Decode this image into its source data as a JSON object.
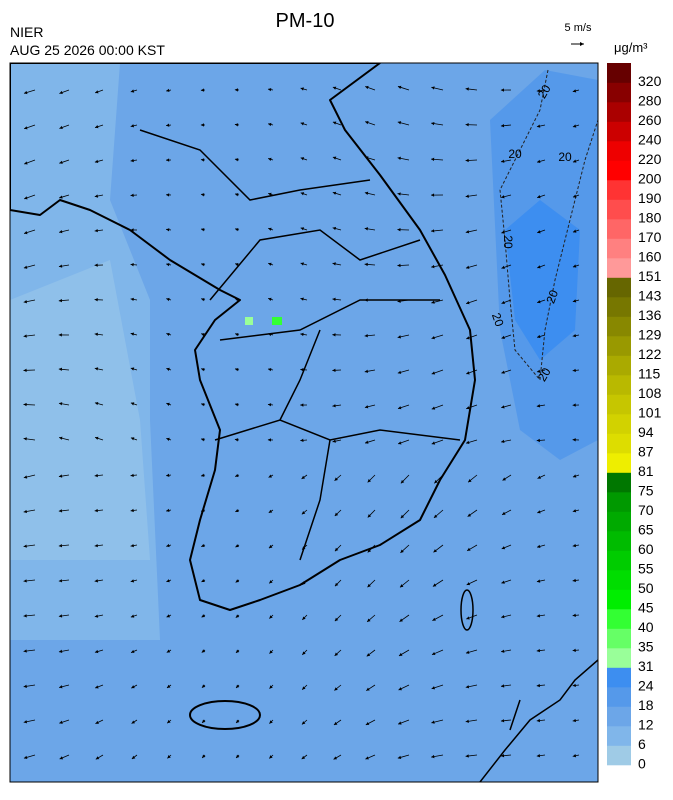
{
  "header": {
    "title": "PM-10",
    "agency": "NIER",
    "timestamp": "AUG 25 2026 00:00 KST",
    "wind_scale": "5 m/s",
    "unit": "μg/m³"
  },
  "contour_label": "20",
  "colorbar": {
    "labels": [
      0,
      6,
      12,
      18,
      24,
      31,
      35,
      40,
      45,
      50,
      55,
      60,
      65,
      70,
      75,
      81,
      87,
      94,
      101,
      108,
      115,
      122,
      129,
      136,
      143,
      151,
      160,
      170,
      180,
      190,
      200,
      220,
      240,
      260,
      280,
      320
    ],
    "colors": [
      "#9fcbe6",
      "#80b6ea",
      "#6ca6e8",
      "#5599ea",
      "#3d8ef0",
      "#99ff99",
      "#66ff66",
      "#33ff33",
      "#00ee00",
      "#00dd00",
      "#00cc00",
      "#00bb00",
      "#00aa00",
      "#009900",
      "#007700",
      "#eeee00",
      "#dddd00",
      "#d2d200",
      "#c6c600",
      "#b9b900",
      "#aaaa00",
      "#999900",
      "#888800",
      "#777700",
      "#666600",
      "#ff9999",
      "#ff8080",
      "#ff6666",
      "#ff4d4d",
      "#ff3333",
      "#ff0000",
      "#ee0000",
      "#cc0000",
      "#aa0000",
      "#880000",
      "#660000"
    ]
  }
}
